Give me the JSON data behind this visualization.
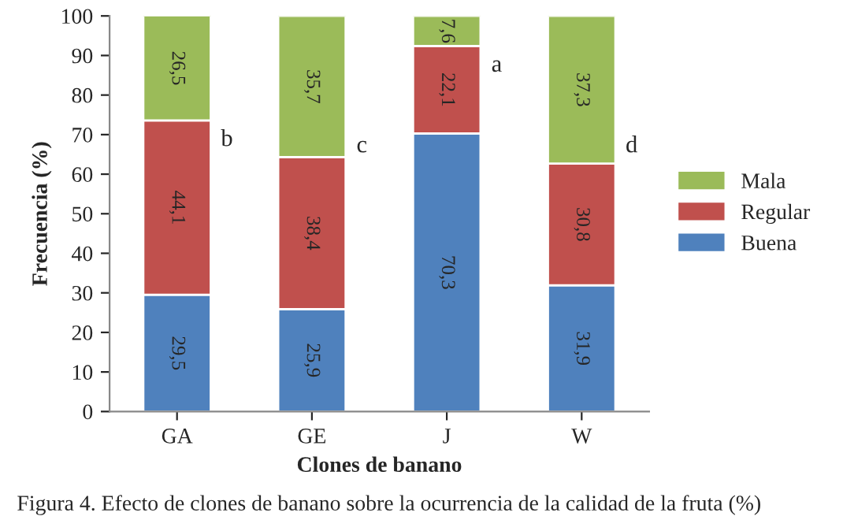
{
  "chart_data": {
    "type": "bar",
    "stacked": true,
    "xlabel": "Clones de banano",
    "ylabel": "Frecuencia (%)",
    "categories": [
      "GA",
      "GE",
      "J",
      "W"
    ],
    "series": [
      {
        "name": "Buena",
        "color": "#4f81bd",
        "values": [
          29.5,
          25.9,
          70.3,
          31.9
        ],
        "value_labels": [
          "29,5",
          "25,9",
          "70,3",
          "31,9"
        ]
      },
      {
        "name": "Regular",
        "color": "#c0504d",
        "values": [
          44.1,
          38.4,
          22.1,
          30.8
        ],
        "value_labels": [
          "44,1",
          "38,4",
          "22,1",
          "30,8"
        ]
      },
      {
        "name": "Mala",
        "color": "#9bbb59",
        "values": [
          26.5,
          35.7,
          7.6,
          37.3
        ],
        "value_labels": [
          "26,5",
          "35,7",
          "7,6",
          "37,3"
        ]
      }
    ],
    "ylim": [
      0,
      100
    ],
    "yticks": [
      0,
      10,
      20,
      30,
      40,
      50,
      60,
      70,
      80,
      90,
      100
    ],
    "grid": false,
    "legend": "right",
    "annotations": [
      "b",
      "c",
      "a",
      "d",
      "Figura 4. Efecto de clones de banano sobre la ocurrencia de la calidad de la fruta (%)"
    ]
  }
}
